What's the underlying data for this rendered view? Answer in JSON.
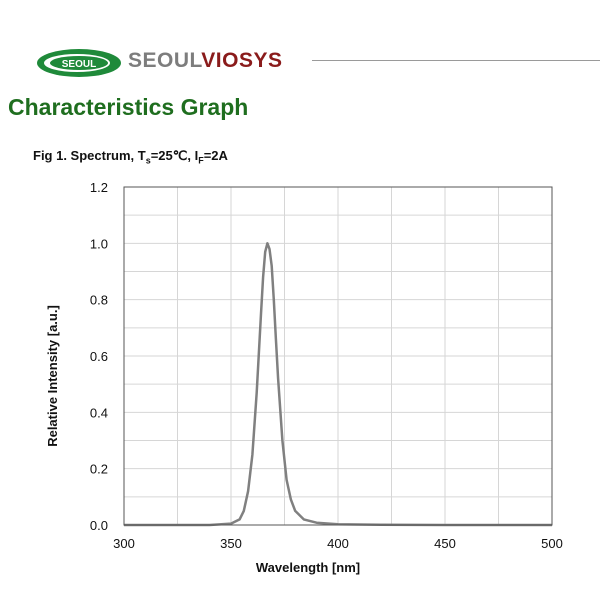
{
  "header": {
    "logo_text": "SEOUL",
    "brand_prefix": "SEOUL",
    "brand_suffix": "VIOSYS"
  },
  "section_title": "Characteristics Graph",
  "figure": {
    "title_prefix": "Fig 1. Spectrum, T",
    "title_ts_sub": "s",
    "title_mid": "=25℃, I",
    "title_if_sub": "F",
    "title_suffix": "=2A"
  },
  "chart_data": {
    "type": "line",
    "title": "Fig 1. Spectrum, Ts=25℃, IF=2A",
    "xlabel": "Wavelength [nm]",
    "ylabel": "Relative Intensity [a.u.]",
    "xlim": [
      300,
      500
    ],
    "ylim": [
      0,
      1.2
    ],
    "x_ticks": [
      300,
      350,
      400,
      450,
      500
    ],
    "y_ticks": [
      0.0,
      0.2,
      0.4,
      0.6,
      0.8,
      1.0,
      1.2
    ],
    "x_tick_labels": [
      "300",
      "350",
      "400",
      "450",
      "500"
    ],
    "y_tick_labels": [
      "0.0",
      "0.2",
      "0.4",
      "0.6",
      "0.8",
      "1.0",
      "1.2"
    ],
    "grid": true,
    "line_color": "#808080",
    "series": [
      {
        "x": [
          300,
          340,
          350,
          354,
          356,
          358,
          360,
          362,
          364,
          365,
          366,
          367,
          368,
          369,
          370,
          371,
          372,
          374,
          376,
          378,
          380,
          384,
          390,
          400,
          420,
          450,
          500
        ],
        "y": [
          0.0,
          0.0,
          0.005,
          0.02,
          0.05,
          0.12,
          0.25,
          0.47,
          0.75,
          0.88,
          0.97,
          1.0,
          0.98,
          0.92,
          0.8,
          0.66,
          0.52,
          0.3,
          0.16,
          0.09,
          0.05,
          0.02,
          0.008,
          0.003,
          0.001,
          0.0,
          0.0
        ]
      }
    ]
  }
}
